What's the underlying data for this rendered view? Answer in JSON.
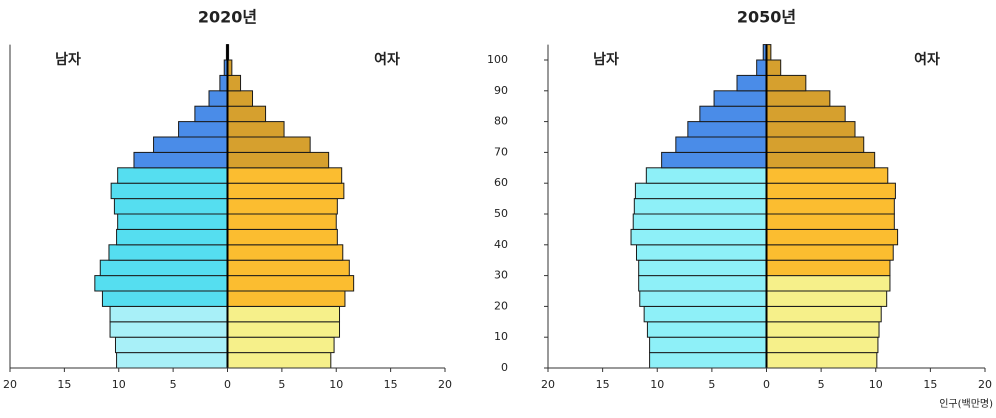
{
  "chart_data": [
    {
      "type": "pyramid",
      "title": "2020년",
      "series": [
        {
          "name": "남자",
          "values": [
            10.2,
            10.3,
            10.8,
            10.8,
            11.5,
            12.2,
            11.7,
            10.9,
            10.2,
            10.1,
            10.4,
            10.7,
            10.1,
            8.6,
            6.8,
            4.5,
            3.0,
            1.7,
            0.7,
            0.3,
            0.1
          ],
          "colors": [
            "#a8f0f8",
            "#a8f0f8",
            "#a8f0f8",
            "#a8f0f8",
            "#55def0",
            "#55def0",
            "#55def0",
            "#55def0",
            "#55def0",
            "#55def0",
            "#55def0",
            "#55def0",
            "#55def0",
            "#4a8ce8",
            "#4a8ce8",
            "#4a8ce8",
            "#4a8ce8",
            "#4a8ce8",
            "#4a8ce8",
            "#4a8ce8",
            "#4a8ce8"
          ]
        },
        {
          "name": "여자",
          "values": [
            9.5,
            9.8,
            10.3,
            10.3,
            10.8,
            11.6,
            11.2,
            10.6,
            10.1,
            10.0,
            10.1,
            10.7,
            10.5,
            9.3,
            7.6,
            5.2,
            3.5,
            2.3,
            1.2,
            0.4,
            0.1
          ],
          "colors": [
            "#f6f08a",
            "#f6f08a",
            "#f6f08a",
            "#f6f08a",
            "#fbbd30",
            "#fbbd30",
            "#fbbd30",
            "#fbbd30",
            "#fbbd30",
            "#fbbd30",
            "#fbbd30",
            "#fbbd30",
            "#fbbd30",
            "#d6a02e",
            "#d6a02e",
            "#d6a02e",
            "#d6a02e",
            "#d6a02e",
            "#d6a02e",
            "#d6a02e",
            "#d6a02e"
          ]
        }
      ],
      "xlim": [
        -20,
        20
      ],
      "xticks": [
        {
          "value": -20,
          "label": "20"
        },
        {
          "value": -15,
          "label": "15"
        },
        {
          "value": -10,
          "label": "10"
        },
        {
          "value": -5,
          "label": "5"
        },
        0,
        5,
        10,
        15,
        20
      ],
      "ylim": [
        0,
        105
      ]
    },
    {
      "type": "pyramid",
      "title": "2050년",
      "xlabel": "인구(백만명)",
      "series": [
        {
          "name": "남자",
          "values": [
            10.7,
            10.7,
            10.9,
            11.2,
            11.6,
            11.7,
            11.7,
            11.9,
            12.4,
            12.2,
            12.1,
            12.0,
            11.0,
            9.6,
            8.3,
            7.2,
            6.1,
            4.8,
            2.7,
            0.9,
            0.3
          ],
          "colors": [
            "#8ef0f8",
            "#8ef0f8",
            "#8ef0f8",
            "#8ef0f8",
            "#8ef0f8",
            "#8ef0f8",
            "#8ef0f8",
            "#8ef0f8",
            "#8ef0f8",
            "#8ef0f8",
            "#8ef0f8",
            "#8ef0f8",
            "#8ef0f8",
            "#4a8ce8",
            "#4a8ce8",
            "#4a8ce8",
            "#4a8ce8",
            "#4a8ce8",
            "#4a8ce8",
            "#4a8ce8",
            "#4a8ce8"
          ]
        },
        {
          "name": "여자",
          "values": [
            10.1,
            10.2,
            10.3,
            10.5,
            11.0,
            11.3,
            11.3,
            11.6,
            12.0,
            11.7,
            11.7,
            11.8,
            11.1,
            9.9,
            8.9,
            8.1,
            7.2,
            5.8,
            3.6,
            1.3,
            0.4
          ],
          "colors": [
            "#f6f08a",
            "#f6f08a",
            "#f6f08a",
            "#f6f08a",
            "#f6f08a",
            "#f6f08a",
            "#fbbd30",
            "#fbbd30",
            "#fbbd30",
            "#fbbd30",
            "#fbbd30",
            "#fbbd30",
            "#fbbd30",
            "#d6a02e",
            "#d6a02e",
            "#d6a02e",
            "#d6a02e",
            "#d6a02e",
            "#d6a02e",
            "#d6a02e",
            "#d6a02e"
          ]
        }
      ],
      "xlim": [
        -20,
        20
      ],
      "xticks": [
        {
          "value": -20,
          "label": "20"
        },
        {
          "value": -15,
          "label": "15"
        },
        {
          "value": -10,
          "label": "10"
        },
        {
          "value": -5,
          "label": "5"
        },
        0,
        5,
        10,
        15,
        20
      ],
      "ylim": [
        0,
        105
      ],
      "yticks": [
        0,
        10,
        20,
        30,
        40,
        50,
        60,
        70,
        80,
        90,
        100
      ]
    }
  ]
}
